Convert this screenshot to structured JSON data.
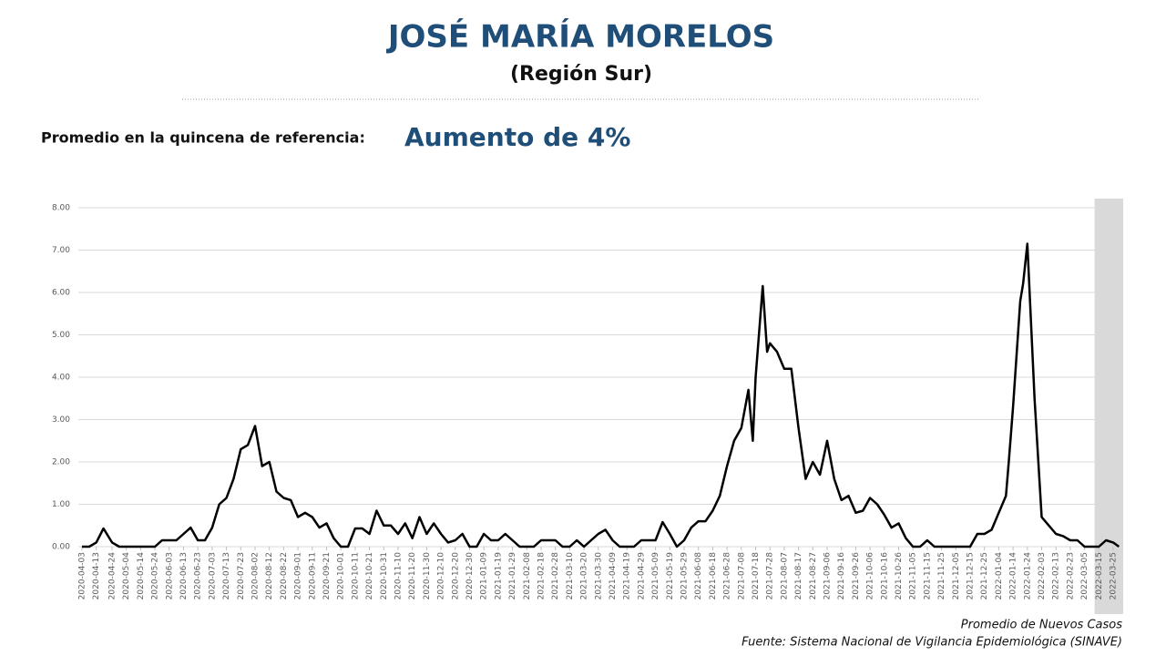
{
  "chart_data": {
    "type": "line",
    "title": "JOSÉ MARÍA MORELOS",
    "subtitle": "(Región Sur)",
    "reference_label": "Promedio en la quincena de referencia:",
    "reference_value": "Aumento de 4%",
    "series_label": "Promedio de Nuevos Casos",
    "source": "Fuente: Sistema Nacional de Vigilancia Epidemiológica (SINAVE)",
    "color": "#000000",
    "shade": [
      "2022-03-12",
      "2022-04-01"
    ],
    "grid": true,
    "xlim": [
      "2020-04-03",
      "2022-04-01"
    ],
    "ylim": [
      0,
      8
    ],
    "yticks": [
      {
        "value": 0,
        "label": "0.00"
      },
      {
        "value": 1,
        "label": "1.00"
      },
      {
        "value": 2,
        "label": "2.00"
      },
      {
        "value": 3,
        "label": "3.00"
      },
      {
        "value": 4,
        "label": "4.00"
      },
      {
        "value": 5,
        "label": "5.00"
      },
      {
        "value": 6,
        "label": "6.00"
      },
      {
        "value": 7,
        "label": "7.00"
      },
      {
        "value": 8,
        "label": "8.00"
      }
    ],
    "xticks": [
      "2020-04-03",
      "2020-04-13",
      "2020-04-24",
      "2020-05-04",
      "2020-05-14",
      "2020-05-24",
      "2020-06-03",
      "2020-06-13",
      "2020-06-23",
      "2020-07-03",
      "2020-07-13",
      "2020-07-23",
      "2020-08-02",
      "2020-08-12",
      "2020-08-22",
      "2020-09-01",
      "2020-09-11",
      "2020-09-21",
      "2020-10-01",
      "2020-10-11",
      "2020-10-21",
      "2020-10-31",
      "2020-11-10",
      "2020-11-20",
      "2020-11-30",
      "2020-12-10",
      "2020-12-20",
      "2020-12-30",
      "2021-01-09",
      "2021-01-19",
      "2021-01-29",
      "2021-02-08",
      "2021-02-18",
      "2021-02-28",
      "2021-03-10",
      "2021-03-20",
      "2021-03-30",
      "2021-04-09",
      "2021-04-19",
      "2021-04-29",
      "2021-05-09",
      "2021-05-19",
      "2021-05-29",
      "2021-06-08",
      "2021-06-18",
      "2021-06-28",
      "2021-07-08",
      "2021-07-18",
      "2021-07-28",
      "2021-08-07",
      "2021-08-17",
      "2021-08-27",
      "2021-09-06",
      "2021-09-16",
      "2021-09-26",
      "2021-10-06",
      "2021-10-16",
      "2021-10-26",
      "2021-11-05",
      "2021-11-15",
      "2021-11-25",
      "2021-12-05",
      "2021-12-15",
      "2021-12-25",
      "2022-01-04",
      "2022-01-14",
      "2022-01-24",
      "2022-02-03",
      "2022-02-13",
      "2022-02-23",
      "2022-03-05",
      "2022-03-15",
      "2022-03-25"
    ],
    "x": [
      "2020-04-03",
      "2020-04-08",
      "2020-04-13",
      "2020-04-18",
      "2020-04-24",
      "2020-04-29",
      "2020-05-04",
      "2020-05-09",
      "2020-05-14",
      "2020-05-19",
      "2020-05-24",
      "2020-05-29",
      "2020-06-03",
      "2020-06-08",
      "2020-06-13",
      "2020-06-18",
      "2020-06-23",
      "2020-06-28",
      "2020-07-03",
      "2020-07-08",
      "2020-07-13",
      "2020-07-18",
      "2020-07-23",
      "2020-07-28",
      "2020-08-02",
      "2020-08-07",
      "2020-08-12",
      "2020-08-17",
      "2020-08-22",
      "2020-08-27",
      "2020-09-01",
      "2020-09-06",
      "2020-09-11",
      "2020-09-16",
      "2020-09-21",
      "2020-09-26",
      "2020-10-01",
      "2020-10-06",
      "2020-10-11",
      "2020-10-16",
      "2020-10-21",
      "2020-10-26",
      "2020-10-31",
      "2020-11-05",
      "2020-11-10",
      "2020-11-15",
      "2020-11-20",
      "2020-11-25",
      "2020-11-30",
      "2020-12-05",
      "2020-12-10",
      "2020-12-15",
      "2020-12-20",
      "2020-12-25",
      "2020-12-30",
      "2021-01-04",
      "2021-01-09",
      "2021-01-14",
      "2021-01-19",
      "2021-01-24",
      "2021-01-29",
      "2021-02-03",
      "2021-02-08",
      "2021-02-13",
      "2021-02-18",
      "2021-02-23",
      "2021-02-28",
      "2021-03-05",
      "2021-03-10",
      "2021-03-15",
      "2021-03-20",
      "2021-03-25",
      "2021-03-30",
      "2021-04-04",
      "2021-04-09",
      "2021-04-14",
      "2021-04-19",
      "2021-04-24",
      "2021-04-29",
      "2021-05-04",
      "2021-05-09",
      "2021-05-14",
      "2021-05-19",
      "2021-05-24",
      "2021-05-29",
      "2021-06-03",
      "2021-06-08",
      "2021-06-13",
      "2021-06-18",
      "2021-06-23",
      "2021-06-28",
      "2021-07-03",
      "2021-07-08",
      "2021-07-13",
      "2021-07-16",
      "2021-07-18",
      "2021-07-21",
      "2021-07-23",
      "2021-07-26",
      "2021-07-28",
      "2021-08-02",
      "2021-08-07",
      "2021-08-12",
      "2021-08-17",
      "2021-08-22",
      "2021-08-27",
      "2021-09-01",
      "2021-09-06",
      "2021-09-11",
      "2021-09-16",
      "2021-09-21",
      "2021-09-26",
      "2021-10-01",
      "2021-10-06",
      "2021-10-11",
      "2021-10-16",
      "2021-10-21",
      "2021-10-26",
      "2021-10-31",
      "2021-11-05",
      "2021-11-10",
      "2021-11-15",
      "2021-11-20",
      "2021-11-25",
      "2021-11-30",
      "2021-12-05",
      "2021-12-10",
      "2021-12-15",
      "2021-12-20",
      "2021-12-25",
      "2021-12-30",
      "2022-01-04",
      "2022-01-09",
      "2022-01-11",
      "2022-01-14",
      "2022-01-19",
      "2022-01-21",
      "2022-01-24",
      "2022-01-29",
      "2022-02-03",
      "2022-02-08",
      "2022-02-13",
      "2022-02-18",
      "2022-02-23",
      "2022-02-28",
      "2022-03-05",
      "2022-03-10",
      "2022-03-15",
      "2022-03-20",
      "2022-03-25",
      "2022-03-29"
    ],
    "values": [
      0,
      0,
      0.1,
      0.43,
      0.1,
      0,
      0,
      0,
      0,
      0,
      0,
      0.15,
      0.15,
      0.15,
      0.3,
      0.45,
      0.15,
      0.15,
      0.45,
      1.0,
      1.15,
      1.6,
      2.3,
      2.4,
      2.85,
      1.9,
      2.0,
      1.3,
      1.15,
      1.1,
      0.7,
      0.8,
      0.7,
      0.45,
      0.55,
      0.2,
      0,
      0,
      0.43,
      0.43,
      0.3,
      0.85,
      0.5,
      0.5,
      0.3,
      0.55,
      0.2,
      0.7,
      0.3,
      0.55,
      0.3,
      0.1,
      0.15,
      0.3,
      0,
      0,
      0.3,
      0.15,
      0.15,
      0.3,
      0.15,
      0,
      0,
      0,
      0.15,
      0.15,
      0.15,
      0,
      0,
      0.15,
      0,
      0.15,
      0.3,
      0.4,
      0.15,
      0,
      0,
      0,
      0.15,
      0.15,
      0.15,
      0.58,
      0.3,
      0,
      0.15,
      0.45,
      0.6,
      0.6,
      0.85,
      1.2,
      1.9,
      2.5,
      2.8,
      3.7,
      2.5,
      4.0,
      5.3,
      6.15,
      4.6,
      4.8,
      4.6,
      4.2,
      4.2,
      2.8,
      1.6,
      2.0,
      1.7,
      2.5,
      1.6,
      1.1,
      1.2,
      0.8,
      0.85,
      1.15,
      1.0,
      0.75,
      0.45,
      0.55,
      0.2,
      0,
      0,
      0.15,
      0,
      0,
      0,
      0,
      0,
      0,
      0.3,
      0.3,
      0.4,
      0.8,
      1.2,
      2.0,
      3.3,
      5.8,
      6.2,
      7.15,
      3.5,
      0.7,
      0.5,
      0.3,
      0.25,
      0.15,
      0.15,
      0,
      0,
      0,
      0.15,
      0.1,
      0
    ]
  }
}
